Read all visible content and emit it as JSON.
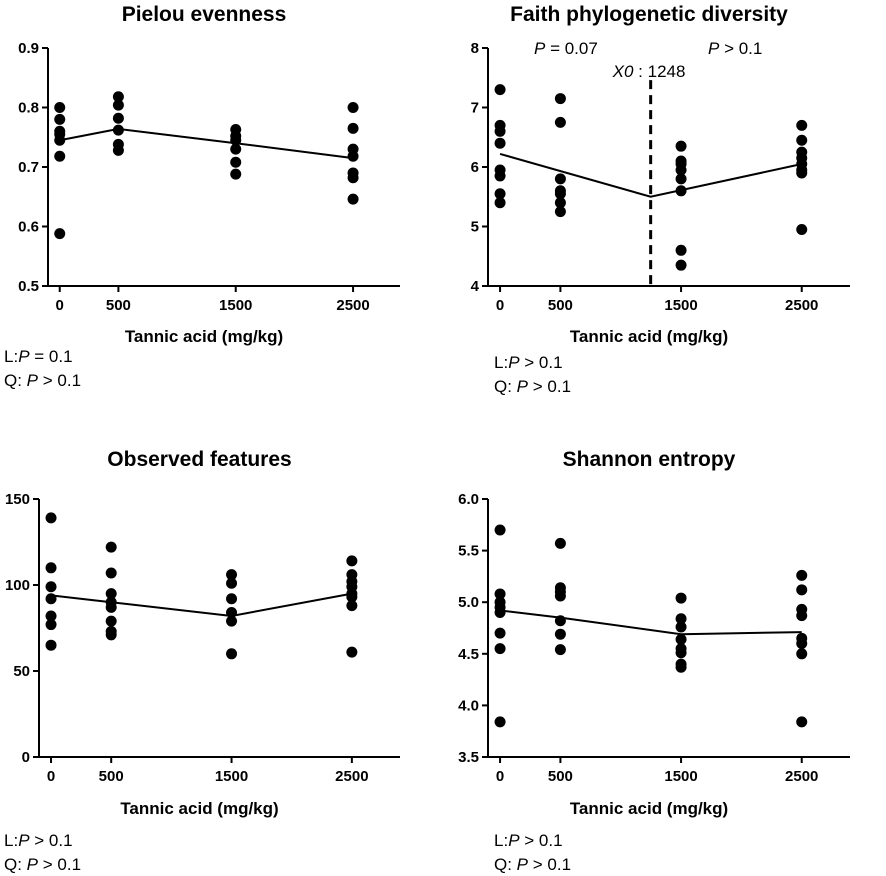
{
  "chart_data": [
    {
      "type": "scatter",
      "title": "Pielou evenness",
      "xlabel": "Tannic acid (mg/kg)",
      "ylabel": "",
      "xlim": [
        -100,
        2900
      ],
      "ylim": [
        0.5,
        0.9
      ],
      "xticks": [
        0,
        500,
        1500,
        2500
      ],
      "xtick_labels": [
        "0",
        "500",
        "1500",
        "2500"
      ],
      "yticks": [
        0.5,
        0.6,
        0.7,
        0.8,
        0.9
      ],
      "ytick_labels": [
        "0.5",
        "0.6",
        "0.7",
        "0.8",
        "0.9"
      ],
      "points": [
        {
          "x": 0,
          "y": [
            0.8,
            0.78,
            0.76,
            0.755,
            0.745,
            0.718,
            0.588
          ]
        },
        {
          "x": 500,
          "y": [
            0.818,
            0.804,
            0.782,
            0.762,
            0.738,
            0.728
          ]
        },
        {
          "x": 1500,
          "y": [
            0.763,
            0.752,
            0.745,
            0.73,
            0.708,
            0.688
          ]
        },
        {
          "x": 2500,
          "y": [
            0.8,
            0.765,
            0.73,
            0.718,
            0.69,
            0.682,
            0.646
          ]
        }
      ],
      "fit_line": {
        "x": [
          0,
          500,
          1500,
          2500
        ],
        "y": [
          0.745,
          0.764,
          0.74,
          0.715
        ]
      },
      "stats": {
        "L": {
          "prefix": "L:",
          "p": "P",
          "rest": " = 0.1"
        },
        "Q": {
          "prefix": "Q: ",
          "p": "P",
          "rest": " > 0.1"
        }
      }
    },
    {
      "type": "scatter",
      "title": "Faith phylogenetic diversity",
      "xlabel": "Tannic acid (mg/kg)",
      "ylabel": "",
      "xlim": [
        -100,
        2900
      ],
      "ylim": [
        4,
        8
      ],
      "xticks": [
        0,
        500,
        1500,
        2500
      ],
      "xtick_labels": [
        "0",
        "500",
        "1500",
        "2500"
      ],
      "yticks": [
        4,
        5,
        6,
        7,
        8
      ],
      "ytick_labels": [
        "4",
        "5",
        "6",
        "7",
        "8"
      ],
      "points": [
        {
          "x": 0,
          "y": [
            7.3,
            6.7,
            6.6,
            6.4,
            5.95,
            5.85,
            5.55,
            5.4
          ]
        },
        {
          "x": 500,
          "y": [
            7.15,
            6.75,
            5.8,
            5.6,
            5.55,
            5.4,
            5.25
          ]
        },
        {
          "x": 1500,
          "y": [
            6.35,
            6.1,
            6.05,
            5.95,
            5.8,
            5.6,
            4.6,
            4.35
          ]
        },
        {
          "x": 2500,
          "y": [
            6.7,
            6.45,
            6.25,
            6.15,
            6.05,
            5.95,
            5.9,
            4.95
          ]
        }
      ],
      "fit_line": {
        "x": [
          0,
          1248,
          2500
        ],
        "y": [
          6.22,
          5.5,
          6.05
        ]
      },
      "breakpoint": {
        "x": 1248,
        "prefix": "X0",
        "label": " : 1248"
      },
      "annotations": {
        "left": {
          "p": "P",
          "rest": " = 0.07"
        },
        "right": {
          "p": "P",
          "rest": " > 0.1"
        }
      },
      "stats": {
        "L": {
          "prefix": "L:",
          "p": "P",
          "rest": " > 0.1"
        },
        "Q": {
          "prefix": "Q: ",
          "p": "P",
          "rest": " > 0.1"
        }
      }
    },
    {
      "type": "scatter",
      "title": "Observed features",
      "xlabel": "Tannic acid (mg/kg)",
      "ylabel": "",
      "xlim": [
        -100,
        2900
      ],
      "ylim": [
        0,
        150
      ],
      "xticks": [
        0,
        500,
        1500,
        2500
      ],
      "xtick_labels": [
        "0",
        "500",
        "1500",
        "2500"
      ],
      "yticks": [
        0,
        50,
        100,
        150
      ],
      "ytick_labels": [
        "0",
        "50",
        "100",
        "150"
      ],
      "points": [
        {
          "x": 0,
          "y": [
            139,
            110,
            99,
            92,
            82,
            77,
            65
          ]
        },
        {
          "x": 500,
          "y": [
            122,
            107,
            95,
            90,
            87,
            79,
            73,
            71
          ]
        },
        {
          "x": 1500,
          "y": [
            106,
            101,
            92,
            84,
            79,
            60
          ]
        },
        {
          "x": 2500,
          "y": [
            114,
            106,
            102,
            99,
            95,
            93,
            88,
            61
          ]
        }
      ],
      "fit_line": {
        "x": [
          0,
          500,
          1500,
          2500
        ],
        "y": [
          94,
          90,
          82,
          95
        ]
      },
      "stats": {
        "L": {
          "prefix": "L:",
          "p": "P",
          "rest": " > 0.1"
        },
        "Q": {
          "prefix": "Q: ",
          "p": "P",
          "rest": " > 0.1"
        }
      }
    },
    {
      "type": "scatter",
      "title": "Shannon entropy",
      "xlabel": "Tannic acid (mg/kg)",
      "ylabel": "",
      "xlim": [
        -100,
        2900
      ],
      "ylim": [
        3.5,
        6.0
      ],
      "xticks": [
        0,
        500,
        1500,
        2500
      ],
      "xtick_labels": [
        "0",
        "500",
        "1500",
        "2500"
      ],
      "yticks": [
        3.5,
        4.0,
        4.5,
        5.0,
        5.5,
        6.0
      ],
      "ytick_labels": [
        "3.5",
        "4.0",
        "4.5",
        "5.0",
        "5.5",
        "6.0"
      ],
      "points": [
        {
          "x": 0,
          "y": [
            5.7,
            5.08,
            5.0,
            4.95,
            4.9,
            4.7,
            4.55,
            3.84
          ]
        },
        {
          "x": 500,
          "y": [
            5.57,
            5.14,
            5.1,
            5.06,
            4.82,
            4.69,
            4.54
          ]
        },
        {
          "x": 1500,
          "y": [
            5.04,
            4.84,
            4.76,
            4.64,
            4.55,
            4.51,
            4.4,
            4.37
          ]
        },
        {
          "x": 2500,
          "y": [
            5.26,
            5.12,
            4.93,
            4.87,
            4.65,
            4.6,
            4.5,
            3.84
          ]
        }
      ],
      "fit_line": {
        "x": [
          0,
          500,
          1500,
          2500
        ],
        "y": [
          4.92,
          4.85,
          4.69,
          4.71
        ]
      },
      "stats": {
        "L": {
          "prefix": "L:",
          "p": "P",
          "rest": " > 0.1"
        },
        "Q": {
          "prefix": "Q: ",
          "p": "P",
          "rest": " > 0.1"
        }
      }
    }
  ]
}
